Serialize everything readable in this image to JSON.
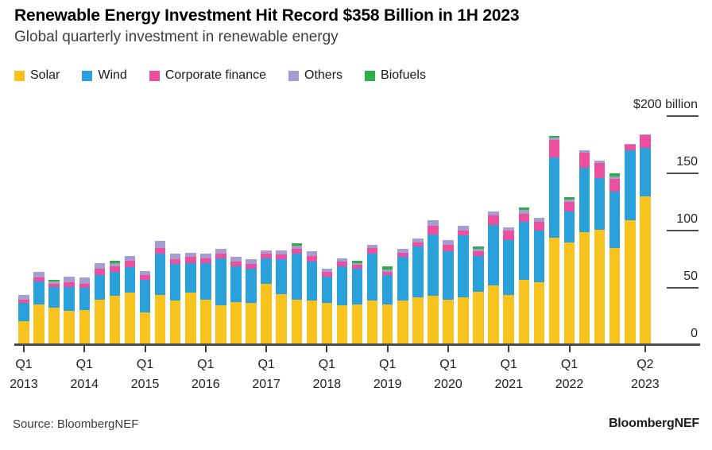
{
  "header": {
    "title": "Renewable Energy Investment Hit Record $358 Billion in 1H 2023",
    "subtitle": "Global quarterly investment in renewable energy"
  },
  "legend": [
    {
      "label": "Solar",
      "color": "#F9C31F"
    },
    {
      "label": "Wind",
      "color": "#2AA1DB"
    },
    {
      "label": "Corporate finance",
      "color": "#EC4F9E"
    },
    {
      "label": "Others",
      "color": "#A79CCF"
    },
    {
      "label": "Biofuels",
      "color": "#2EAE49"
    }
  ],
  "chart_data": {
    "type": "bar",
    "stacked": true,
    "title": "Renewable Energy Investment Hit Record $358 Billion in 1H 2023",
    "subtitle": "Global quarterly investment in renewable energy",
    "unit": "$ billion",
    "ylim": [
      0,
      200
    ],
    "grid": false,
    "legend_position": "top",
    "categories": [
      "Q1 2013",
      "Q2 2013",
      "Q3 2013",
      "Q4 2013",
      "Q1 2014",
      "Q2 2014",
      "Q3 2014",
      "Q4 2014",
      "Q1 2015",
      "Q2 2015",
      "Q3 2015",
      "Q4 2015",
      "Q1 2016",
      "Q2 2016",
      "Q3 2016",
      "Q4 2016",
      "Q1 2017",
      "Q2 2017",
      "Q3 2017",
      "Q4 2017",
      "Q1 2018",
      "Q2 2018",
      "Q3 2018",
      "Q4 2018",
      "Q1 2019",
      "Q2 2019",
      "Q3 2019",
      "Q4 2019",
      "Q1 2020",
      "Q2 2020",
      "Q3 2020",
      "Q4 2020",
      "Q1 2021",
      "Q2 2021",
      "Q3 2021",
      "Q4 2021",
      "Q1 2022",
      "Q2 2022",
      "Q3 2022",
      "Q4 2022",
      "Q1 2023",
      "Q2 2023"
    ],
    "series": [
      {
        "name": "Solar",
        "color": "#F9C31F",
        "values": [
          20,
          35,
          32,
          29,
          30,
          39,
          42,
          45,
          28,
          43,
          38,
          45,
          39,
          34,
          37,
          36,
          53,
          44,
          39,
          38,
          36,
          34,
          35,
          38,
          35,
          38,
          41,
          42,
          39,
          41,
          46,
          51,
          43,
          56,
          54,
          93,
          89,
          98,
          100,
          84,
          108,
          129
        ]
      },
      {
        "name": "Wind",
        "color": "#2AA1DB",
        "values": [
          16,
          20,
          18,
          21,
          19,
          21,
          21,
          22,
          28,
          36,
          32,
          26,
          32,
          41,
          31,
          30,
          22,
          30,
          40,
          34,
          23,
          34,
          31,
          41,
          25,
          38,
          44,
          54,
          42,
          54,
          31,
          53,
          48,
          51,
          45,
          70,
          27,
          56,
          45,
          49,
          61,
          42
        ]
      },
      {
        "name": "Corporate finance",
        "color": "#EC4F9E",
        "values": [
          3,
          3,
          3,
          4,
          4,
          6,
          5,
          6,
          4,
          5,
          4,
          5,
          4,
          4,
          4,
          4,
          4,
          4,
          4,
          5,
          4,
          4,
          3,
          5,
          3,
          4,
          4,
          7,
          6,
          4,
          4,
          8,
          8,
          7,
          8,
          15,
          8,
          13,
          13,
          11,
          5,
          11
        ]
      },
      {
        "name": "Others",
        "color": "#A79CCF",
        "values": [
          4,
          5,
          2,
          5,
          5,
          5,
          3,
          4,
          4,
          6,
          5,
          4,
          4,
          4,
          4,
          4,
          3,
          4,
          3,
          4,
          3,
          3,
          2,
          3,
          2,
          3,
          3,
          5,
          4,
          4,
          2,
          4,
          3,
          3,
          3,
          2,
          2,
          2,
          2,
          2,
          1,
          1
        ]
      },
      {
        "name": "Biofuels",
        "color": "#2EAE49",
        "values": [
          0,
          0,
          1,
          0,
          0,
          0,
          2,
          0,
          0,
          0,
          0,
          0,
          0,
          0,
          0,
          0,
          0,
          0,
          2,
          0,
          0,
          0,
          2,
          0,
          3,
          0,
          0,
          0,
          0,
          0,
          2,
          0,
          0,
          2,
          0,
          2,
          2,
          0,
          0,
          3,
          0,
          0
        ]
      }
    ],
    "y_axis": {
      "ticks": [
        {
          "value": 200,
          "label": "$200 billion",
          "dash": true
        },
        {
          "value": 150,
          "label": "150",
          "dash": true
        },
        {
          "value": 100,
          "label": "100",
          "dash": true
        },
        {
          "value": 50,
          "label": "50",
          "dash": true
        },
        {
          "value": 0,
          "label": "0",
          "dash": false
        }
      ]
    },
    "x_axis": {
      "ticks": [
        {
          "index": 0,
          "label_top": "Q1",
          "label_bottom": "2013"
        },
        {
          "index": 4,
          "label_top": "Q1",
          "label_bottom": "2014"
        },
        {
          "index": 8,
          "label_top": "Q1",
          "label_bottom": "2015"
        },
        {
          "index": 12,
          "label_top": "Q1",
          "label_bottom": "2016"
        },
        {
          "index": 16,
          "label_top": "Q1",
          "label_bottom": "2017"
        },
        {
          "index": 20,
          "label_top": "Q1",
          "label_bottom": "2018"
        },
        {
          "index": 24,
          "label_top": "Q1",
          "label_bottom": "2019"
        },
        {
          "index": 28,
          "label_top": "Q1",
          "label_bottom": "2020"
        },
        {
          "index": 32,
          "label_top": "Q1",
          "label_bottom": "2021"
        },
        {
          "index": 36,
          "label_top": "Q1",
          "label_bottom": "2022"
        },
        {
          "index": 41,
          "label_top": "Q2",
          "label_bottom": "2023"
        }
      ]
    }
  },
  "footer": {
    "source": "Source: BloombergNEF",
    "brand": "BloombergNEF"
  }
}
